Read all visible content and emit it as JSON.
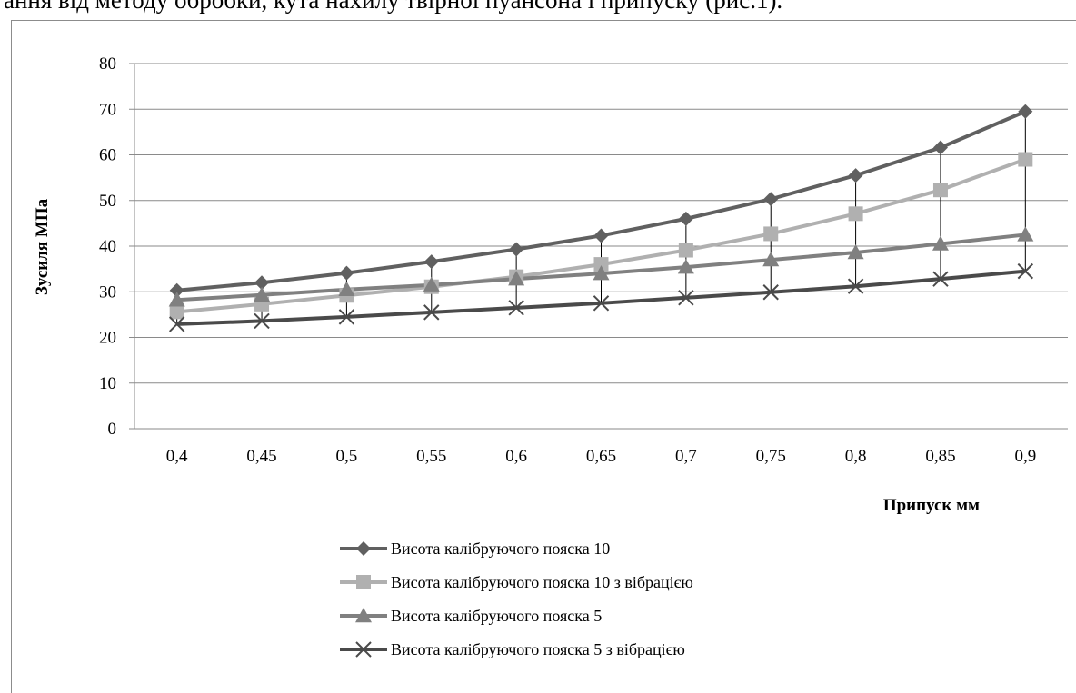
{
  "header_text": "ання від методу обробки, кута нахилу твірної пуансона і припуску (рис.1).",
  "chart_data": {
    "type": "line",
    "categories": [
      "0,4",
      "0,45",
      "0,5",
      "0,55",
      "0,6",
      "0,65",
      "0,7",
      "0,75",
      "0,8",
      "0,85",
      "0,9"
    ],
    "ylabel": "Зусиля МПа",
    "xlabel": "Припуск мм",
    "ylim": [
      0,
      80
    ],
    "yticks": [
      "0",
      "10",
      "20",
      "30",
      "40",
      "50",
      "60",
      "70",
      "80"
    ],
    "grid": true,
    "legend_position": "bottom",
    "drop_lines": true,
    "series": [
      {
        "name": "Висота калібруючого пояска 10",
        "marker": "diamond",
        "color": "#606060",
        "values": [
          30.3,
          32.0,
          34.1,
          36.6,
          39.3,
          42.3,
          46.0,
          50.3,
          55.5,
          61.6,
          69.5
        ]
      },
      {
        "name": "Висота калібруючого пояска 10 з вібрацією",
        "marker": "square",
        "color": "#b0b0b0",
        "values": [
          25.6,
          27.3,
          29.2,
          31.1,
          33.3,
          36.0,
          39.1,
          42.7,
          47.1,
          52.3,
          59.0
        ]
      },
      {
        "name": "Висота калібруючого пояска 5",
        "marker": "triangle",
        "color": "#808080",
        "values": [
          28.2,
          29.3,
          30.5,
          31.5,
          32.8,
          34.0,
          35.4,
          37.0,
          38.6,
          40.5,
          42.5
        ]
      },
      {
        "name": "Висота калібруючого пояска 5 з вібрацією",
        "marker": "x",
        "color": "#4a4a4a",
        "values": [
          22.9,
          23.6,
          24.5,
          25.5,
          26.5,
          27.5,
          28.7,
          29.9,
          31.2,
          32.8,
          34.5
        ]
      }
    ]
  }
}
